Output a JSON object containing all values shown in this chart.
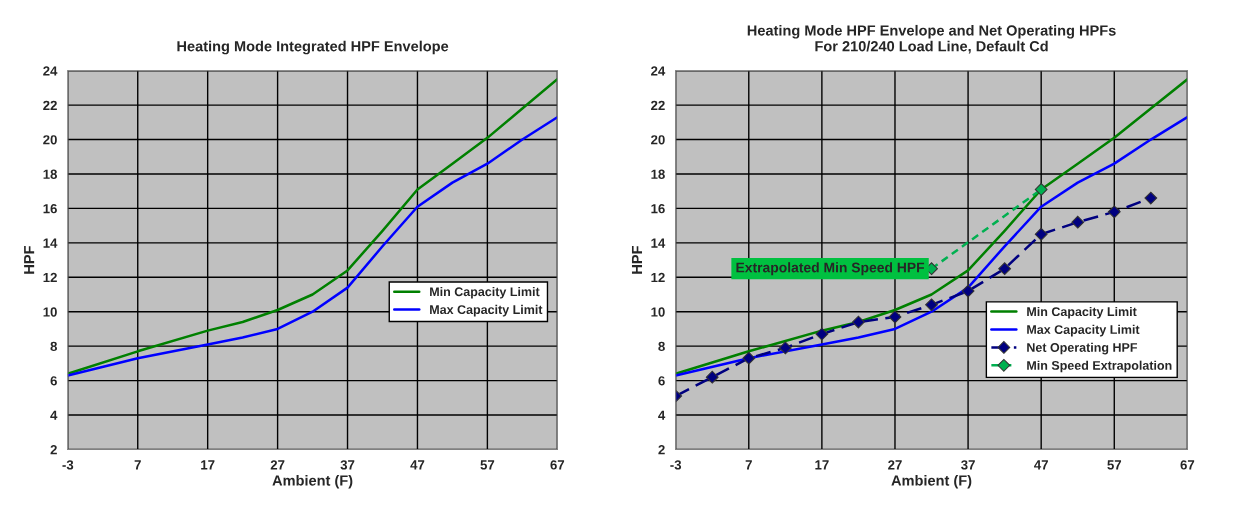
{
  "chart_data": [
    {
      "type": "line",
      "title": "Heating Mode Integrated HPF Envelope",
      "xlabel": "Ambient (F)",
      "ylabel": "HPF",
      "xlim": [
        -3,
        67
      ],
      "xticks": [
        -3,
        7,
        17,
        27,
        37,
        47,
        57,
        67
      ],
      "ylim": [
        2,
        24
      ],
      "yticks": [
        2,
        4,
        6,
        8,
        10,
        12,
        14,
        16,
        18,
        20,
        22,
        24
      ],
      "grid": true,
      "legend": "right",
      "marker": "none",
      "line_style": "solid",
      "x": [
        -3,
        7,
        17,
        22,
        27,
        32,
        37,
        42,
        47,
        52,
        57,
        62,
        67
      ],
      "series": [
        {
          "name": "Min Capacity Limit",
          "color": "#008000",
          "values": [
            6.4,
            7.7,
            8.9,
            9.4,
            10.1,
            11.0,
            12.4,
            14.7,
            17.1,
            18.6,
            20.1,
            21.8,
            23.5
          ]
        },
        {
          "name": "Max Capacity Limit",
          "color": "#0000ff",
          "values": [
            6.3,
            7.3,
            8.1,
            8.5,
            9.0,
            10.0,
            11.4,
            13.8,
            16.1,
            17.5,
            18.6,
            20.0,
            21.3
          ]
        }
      ]
    },
    {
      "type": "line",
      "title": "Heating Mode HPF Envelope and Net Operating HPFs\nFor 210/240 Load Line, Default Cd",
      "xlabel": "Ambient (F)",
      "ylabel": "HPF",
      "xlim": [
        -3,
        67
      ],
      "xticks": [
        -3,
        7,
        17,
        27,
        37,
        47,
        57,
        67
      ],
      "ylim": [
        2,
        24
      ],
      "yticks": [
        2,
        4,
        6,
        8,
        10,
        12,
        14,
        16,
        18,
        20,
        22,
        24
      ],
      "grid": true,
      "legend": "right",
      "marker": "none",
      "line_style": "solid",
      "x": [
        -3,
        7,
        17,
        22,
        27,
        32,
        37,
        42,
        47,
        52,
        57,
        62,
        67
      ],
      "annotations": [
        {
          "text": "Extrapolated Min Speed HPF",
          "x": 32,
          "y": 12.5
        }
      ],
      "series": [
        {
          "name": "Min Capacity Limit",
          "color": "#008000",
          "values": [
            6.4,
            7.7,
            8.9,
            9.4,
            10.1,
            11.0,
            12.4,
            14.7,
            17.1,
            18.6,
            20.1,
            21.8,
            23.5
          ]
        },
        {
          "name": "Max Capacity Limit",
          "color": "#0000ff",
          "values": [
            6.3,
            7.3,
            8.1,
            8.5,
            9.0,
            10.0,
            11.4,
            13.8,
            16.1,
            17.5,
            18.6,
            20.0,
            21.3
          ]
        },
        {
          "name": "Net Operating HPF",
          "color": "#000080",
          "marker": "diamond",
          "line_style": "dashed",
          "x": [
            -3,
            2,
            7,
            12,
            17,
            22,
            27,
            32,
            37,
            42,
            47,
            52,
            57,
            62
          ],
          "values": [
            5.1,
            6.2,
            7.3,
            7.9,
            8.7,
            9.4,
            9.7,
            10.4,
            11.2,
            12.5,
            14.5,
            15.2,
            15.8,
            16.6
          ]
        },
        {
          "name": "Min Speed Extrapolation",
          "color": "#00b050",
          "marker": "diamond",
          "line_style": "dotted",
          "x": [
            32,
            47
          ],
          "values": [
            12.5,
            17.1
          ]
        }
      ]
    }
  ]
}
